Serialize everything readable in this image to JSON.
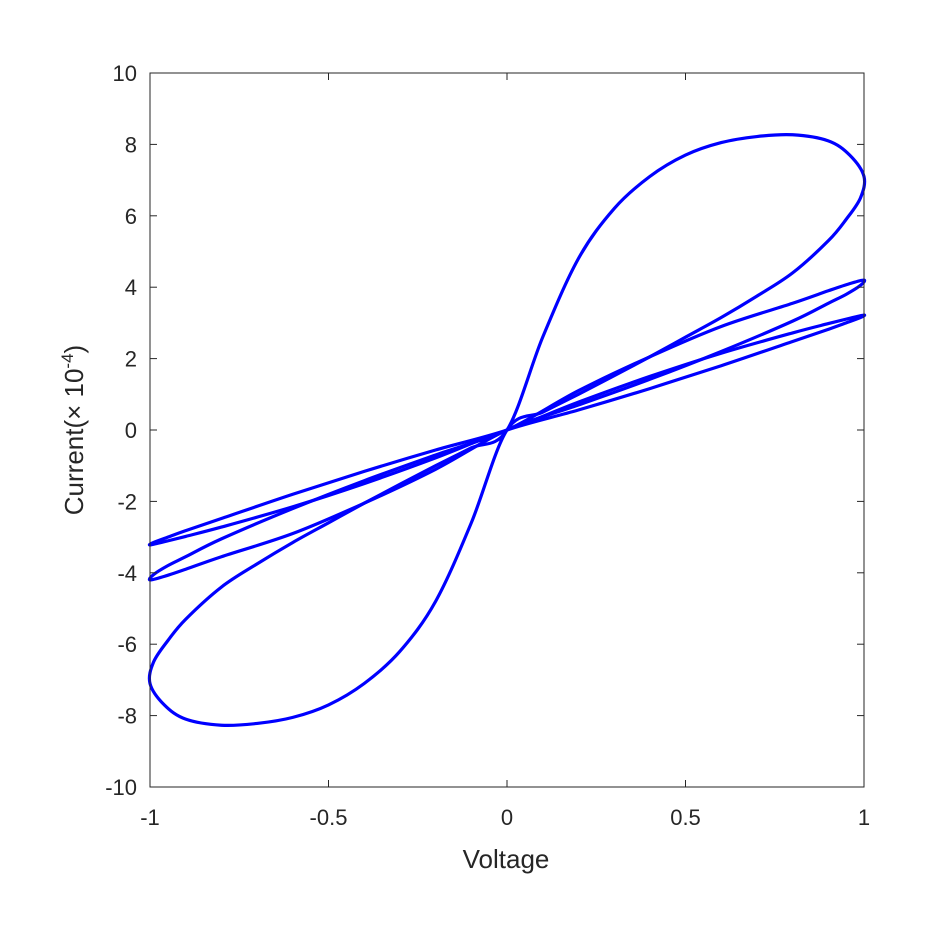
{
  "chart_data": {
    "type": "line",
    "title": "",
    "xlabel": "Voltage",
    "ylabel": "Current(× 10",
    "ylabel_exponent": "-4",
    "ylabel_suffix": ")",
    "xlim": [
      -1,
      1
    ],
    "ylim": [
      -10,
      10
    ],
    "xticks": [
      -1,
      -0.5,
      0,
      0.5,
      1
    ],
    "xtick_labels": [
      "-1",
      "-0.5",
      "0",
      "0.5",
      "1"
    ],
    "yticks": [
      -10,
      -8,
      -6,
      -4,
      -2,
      0,
      2,
      4,
      6,
      8,
      10
    ],
    "ytick_labels": [
      "-10",
      "-8",
      "-6",
      "-4",
      "-2",
      "0",
      "2",
      "4",
      "6",
      "8",
      "10"
    ],
    "grid": false,
    "box": true,
    "line_color": "#0000ff",
    "series": [
      {
        "x": [
          0,
          0.1,
          0.2,
          0.3,
          0.4,
          0.5,
          0.6,
          0.7,
          0.8,
          0.9,
          0.96,
          1.0,
          0.99,
          0.95,
          0.9,
          0.8,
          0.7,
          0.6,
          0.5,
          0.4,
          0.3,
          0.2,
          0.1,
          0,
          -0.1,
          -0.2,
          -0.3,
          -0.4,
          -0.5,
          -0.6,
          -0.7,
          -0.8,
          -0.9,
          -0.96,
          -1.0,
          -0.99,
          -0.95,
          -0.9,
          -0.8,
          -0.7,
          -0.6,
          -0.5,
          -0.4,
          -0.3,
          -0.2,
          -0.1,
          0
        ],
        "y": [
          0,
          2.6,
          4.8,
          6.2,
          7.1,
          7.7,
          8.05,
          8.22,
          8.27,
          8.1,
          7.7,
          7.1,
          6.5,
          5.9,
          5.3,
          4.4,
          3.75,
          3.15,
          2.6,
          2.05,
          1.52,
          1.0,
          0.5,
          0,
          -2.6,
          -4.8,
          -6.2,
          -7.1,
          -7.7,
          -8.05,
          -8.22,
          -8.27,
          -8.1,
          -7.7,
          -7.1,
          -6.5,
          -5.9,
          -5.3,
          -4.4,
          -3.75,
          -3.15,
          -2.6,
          -2.05,
          -1.52,
          -1.0,
          -0.5,
          0
        ]
      },
      {
        "x": [
          0,
          0.2,
          0.4,
          0.6,
          0.8,
          0.9,
          0.96,
          1.0,
          0.99,
          0.95,
          0.9,
          0.8,
          0.6,
          0.4,
          0.2,
          0,
          -0.2,
          -0.4,
          -0.6,
          -0.8,
          -0.9,
          -0.96,
          -1.0,
          -0.99,
          -0.95,
          -0.9,
          -0.8,
          -0.6,
          -0.4,
          -0.2,
          0
        ],
        "y": [
          0,
          1.1,
          2.05,
          2.9,
          3.55,
          3.9,
          4.1,
          4.2,
          4.05,
          3.8,
          3.55,
          3.05,
          2.2,
          1.42,
          0.7,
          0,
          -1.1,
          -2.05,
          -2.9,
          -3.55,
          -3.9,
          -4.1,
          -4.2,
          -4.05,
          -3.8,
          -3.55,
          -3.05,
          -2.2,
          -1.42,
          -0.7,
          0
        ]
      },
      {
        "x": [
          0,
          0.2,
          0.4,
          0.6,
          0.8,
          0.9,
          0.96,
          1.0,
          0.99,
          0.95,
          0.9,
          0.8,
          0.6,
          0.4,
          0.2,
          0,
          -0.2,
          -0.4,
          -0.6,
          -0.8,
          -0.9,
          -0.96,
          -1.0,
          -0.99,
          -0.95,
          -0.9,
          -0.8,
          -0.6,
          -0.4,
          -0.2,
          0
        ],
        "y": [
          0,
          0.78,
          1.5,
          2.15,
          2.72,
          2.98,
          3.13,
          3.22,
          3.15,
          3.0,
          2.82,
          2.48,
          1.8,
          1.16,
          0.56,
          0,
          -0.78,
          -1.5,
          -2.15,
          -2.72,
          -2.98,
          -3.13,
          -3.22,
          -3.15,
          -3.0,
          -2.82,
          -2.48,
          -1.8,
          -1.16,
          -0.56,
          0
        ]
      }
    ]
  }
}
